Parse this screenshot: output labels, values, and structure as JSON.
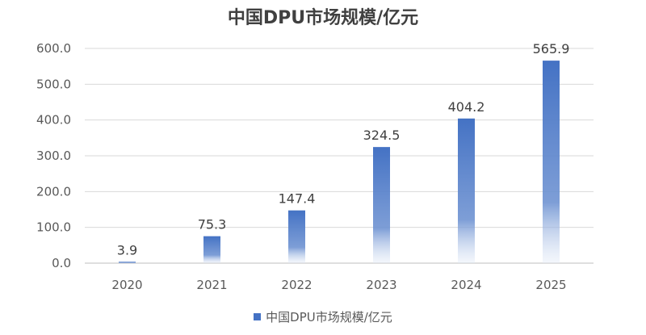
{
  "chart_data": {
    "type": "bar",
    "title": "中国DPU市场规模/亿元",
    "categories": [
      "2020",
      "2021",
      "2022",
      "2023",
      "2024",
      "2025"
    ],
    "series": [
      {
        "name": "中国DPU市场规模/亿元",
        "values": [
          3.9,
          75.3,
          147.4,
          324.5,
          404.2,
          565.9
        ],
        "labels": [
          "3.9",
          "75.3",
          "147.4",
          "324.5",
          "404.2",
          "565.9"
        ]
      }
    ],
    "yticks": [
      "0.0",
      "100.0",
      "200.0",
      "300.0",
      "400.0",
      "500.0",
      "600.0"
    ],
    "ylim": [
      0,
      600
    ],
    "grid": true,
    "legend_position": "bottom",
    "bar_color": "#4472c4"
  }
}
